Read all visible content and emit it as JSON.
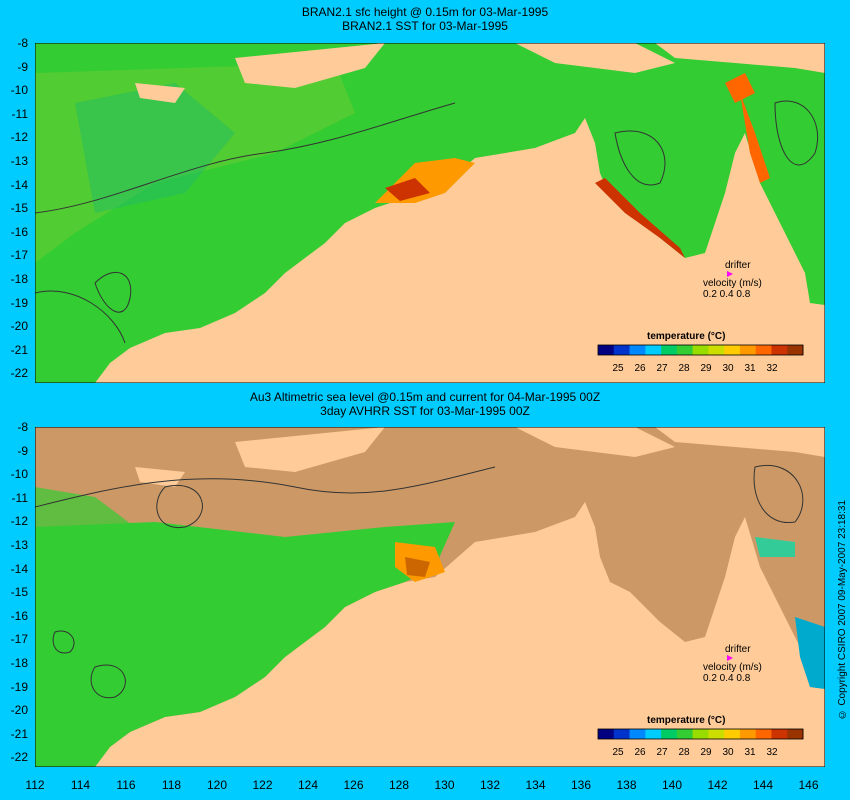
{
  "panel1": {
    "title_line1": "BRAN2.1  sfc height @ 0.15m for 03-Mar-1995",
    "title_line2": "BRAN2.1  SST for 03-Mar-1995"
  },
  "panel2": {
    "title_line1": "Au3 Altimetric sea level  @0.15m and current for 04-Mar-1995 00Z",
    "title_line2": "3day AVHRR SST for 03-Mar-1995 00Z"
  },
  "legend": {
    "drifter_label": "drifter",
    "velocity_label": "velocity (m/s)",
    "velocity_values": "0.2 0.4 0.8",
    "colorbar_title": "temperature (°C)",
    "ticks": [
      "25",
      "26",
      "27",
      "28",
      "29",
      "30",
      "31",
      "32"
    ],
    "colors": [
      "#000080",
      "#0033cc",
      "#0088ff",
      "#00ccff",
      "#00cc66",
      "#33cc33",
      "#99dd00",
      "#ccdd00",
      "#ffcc00",
      "#ff9900",
      "#ff6600",
      "#cc3300",
      "#993300"
    ],
    "drifter_color": "#ff00ff"
  },
  "yticks": [
    "-8",
    "-9",
    "-10",
    "-11",
    "-12",
    "-13",
    "-14",
    "-15",
    "-16",
    "-17",
    "-18",
    "-19",
    "-20",
    "-21",
    "-22"
  ],
  "xticks": [
    "112",
    "114",
    "116",
    "118",
    "120",
    "122",
    "124",
    "126",
    "128",
    "130",
    "132",
    "134",
    "136",
    "138",
    "140",
    "142",
    "144",
    "146"
  ],
  "copyright": "© Copyright CSIRO 2007   09-May-2007 23:18:31",
  "colors": {
    "background": "#00ccff",
    "land": "#ffcc99",
    "no_data": "#cc9966"
  }
}
